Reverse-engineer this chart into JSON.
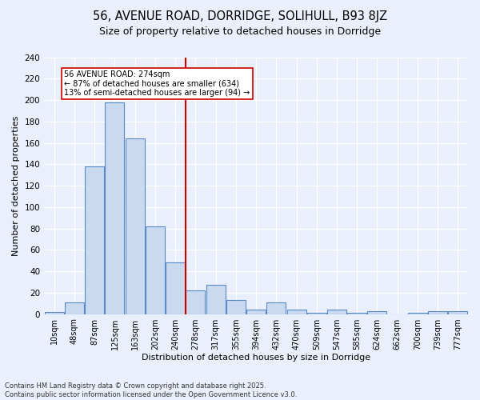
{
  "title": "56, AVENUE ROAD, DORRIDGE, SOLIHULL, B93 8JZ",
  "subtitle": "Size of property relative to detached houses in Dorridge",
  "xlabel": "Distribution of detached houses by size in Dorridge",
  "ylabel": "Number of detached properties",
  "bin_labels": [
    "10sqm",
    "48sqm",
    "87sqm",
    "125sqm",
    "163sqm",
    "202sqm",
    "240sqm",
    "278sqm",
    "317sqm",
    "355sqm",
    "394sqm",
    "432sqm",
    "470sqm",
    "509sqm",
    "547sqm",
    "585sqm",
    "624sqm",
    "662sqm",
    "700sqm",
    "739sqm",
    "777sqm"
  ],
  "bar_values": [
    2,
    11,
    138,
    198,
    164,
    82,
    48,
    22,
    27,
    13,
    4,
    11,
    4,
    1,
    4,
    1,
    3,
    0,
    1,
    3,
    3
  ],
  "bar_color": "#c9d9f0",
  "bar_edge_color": "#5a88c8",
  "vline_x_idx": 7,
  "vline_color": "#cc0000",
  "annotation_text": "56 AVENUE ROAD: 274sqm\n← 87% of detached houses are smaller (634)\n13% of semi-detached houses are larger (94) →",
  "annotation_box_color": "#ffffff",
  "annotation_box_edge": "#cc0000",
  "footer_line1": "Contains HM Land Registry data © Crown copyright and database right 2025.",
  "footer_line2": "Contains public sector information licensed under the Open Government Licence v3.0.",
  "bg_color": "#eaf0fb",
  "grid_color": "#ffffff",
  "ylim": [
    0,
    240
  ],
  "yticks": [
    0,
    20,
    40,
    60,
    80,
    100,
    120,
    140,
    160,
    180,
    200,
    220,
    240
  ]
}
